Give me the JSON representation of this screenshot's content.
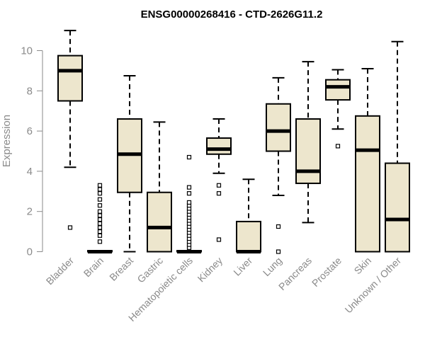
{
  "chart_data": {
    "type": "boxplot",
    "title": "ENSG00000268416 - CTD-2626G11.2",
    "xlabel": "",
    "ylabel": "Expression",
    "ylim": [
      0,
      10.5
    ],
    "yticks": [
      0,
      2,
      4,
      6,
      8,
      10
    ],
    "grid": false,
    "box_fill": "#ede6cd",
    "box_stroke": "#000000",
    "categories": [
      "Bladder",
      "Brain",
      "Breast",
      "Gastric",
      "Hematopoietic cells",
      "Kidney",
      "Liver",
      "Lung",
      "Pancreas",
      "Prostate",
      "Skin",
      "Unknown / Other"
    ],
    "boxes": [
      {
        "q1": 7.5,
        "median": 9.0,
        "q3": 9.75,
        "whisker_low": 4.2,
        "whisker_high": 11.0,
        "outliers": [
          1.2
        ]
      },
      {
        "q1": 0.0,
        "median": 0.0,
        "q3": 0.05,
        "whisker_low": 0.0,
        "whisker_high": 0.05,
        "outliers": [
          0.5,
          0.8,
          1.0,
          1.2,
          1.4,
          1.6,
          1.8,
          2.0,
          2.3,
          2.6,
          2.9,
          3.1,
          3.3
        ]
      },
      {
        "q1": 2.95,
        "median": 4.85,
        "q3": 6.6,
        "whisker_low": 0.0,
        "whisker_high": 8.75,
        "outliers": []
      },
      {
        "q1": 0.0,
        "median": 1.2,
        "q3": 2.95,
        "whisker_low": 0.0,
        "whisker_high": 6.45,
        "outliers": []
      },
      {
        "q1": 0.0,
        "median": 0.0,
        "q3": 0.05,
        "whisker_low": 0.0,
        "whisker_high": 0.05,
        "outliers": [
          0.2,
          0.35,
          0.5,
          0.65,
          0.8,
          0.95,
          1.1,
          1.25,
          1.4,
          1.55,
          1.7,
          1.85,
          2.0,
          2.15,
          2.3,
          2.45,
          2.9,
          3.2,
          4.7
        ]
      },
      {
        "q1": 4.85,
        "median": 5.1,
        "q3": 5.65,
        "whisker_low": 3.9,
        "whisker_high": 6.6,
        "outliers": [
          3.3,
          2.9,
          0.6
        ]
      },
      {
        "q1": 0.0,
        "median": 0.0,
        "q3": 1.5,
        "whisker_low": 0.0,
        "whisker_high": 3.6,
        "outliers": []
      },
      {
        "q1": 5.0,
        "median": 6.0,
        "q3": 7.35,
        "whisker_low": 2.8,
        "whisker_high": 8.65,
        "outliers": [
          1.25,
          0.0
        ]
      },
      {
        "q1": 3.4,
        "median": 4.0,
        "q3": 6.6,
        "whisker_low": 1.45,
        "whisker_high": 9.45,
        "outliers": []
      },
      {
        "q1": 7.55,
        "median": 8.2,
        "q3": 8.55,
        "whisker_low": 6.1,
        "whisker_high": 9.05,
        "outliers": [
          5.25
        ]
      },
      {
        "q1": 0.0,
        "median": 5.05,
        "q3": 6.75,
        "whisker_low": 0.0,
        "whisker_high": 9.1,
        "outliers": []
      },
      {
        "q1": 0.0,
        "median": 1.6,
        "q3": 4.4,
        "whisker_low": 0.0,
        "whisker_high": 10.45,
        "outliers": []
      }
    ]
  }
}
